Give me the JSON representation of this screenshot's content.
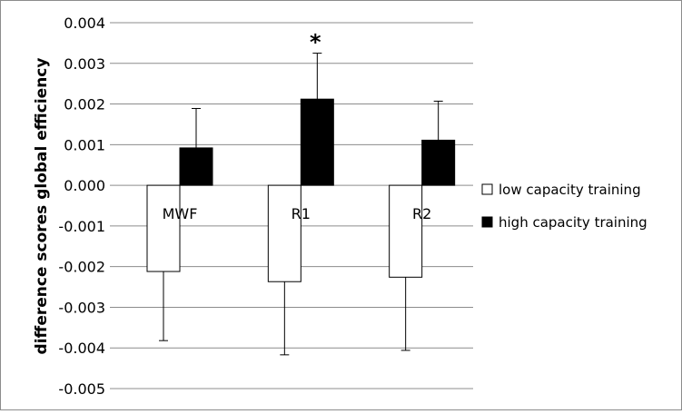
{
  "chart_data": {
    "type": "bar",
    "title": "",
    "xlabel": "",
    "ylabel": "difference scores global efficiency",
    "ylim": [
      -0.005,
      0.004
    ],
    "ytick_labels": [
      "0.004",
      "0.003",
      "0.002",
      "0.001",
      "0.000",
      "-0.001",
      "-0.002",
      "-0.003",
      "-0.004",
      "-0.005"
    ],
    "yticks": [
      0.004,
      0.003,
      0.002,
      0.001,
      0.0,
      -0.001,
      -0.002,
      -0.003,
      -0.004,
      -0.005
    ],
    "grid": true,
    "legend_position": "right",
    "categories": [
      "MWF",
      "R1",
      "R2"
    ],
    "series": [
      {
        "name": "low capacity training",
        "color": "#ffffff",
        "values": [
          -0.00212,
          -0.00237,
          -0.00226
        ],
        "error": [
          0.0017,
          0.0018,
          0.0018
        ]
      },
      {
        "name": "high capacity training",
        "color": "#000000",
        "values": [
          0.00092,
          0.00212,
          0.00111
        ],
        "error": [
          0.00097,
          0.00113,
          0.00096
        ]
      }
    ],
    "annotations": [
      {
        "category": "R1",
        "text": "*"
      }
    ]
  }
}
